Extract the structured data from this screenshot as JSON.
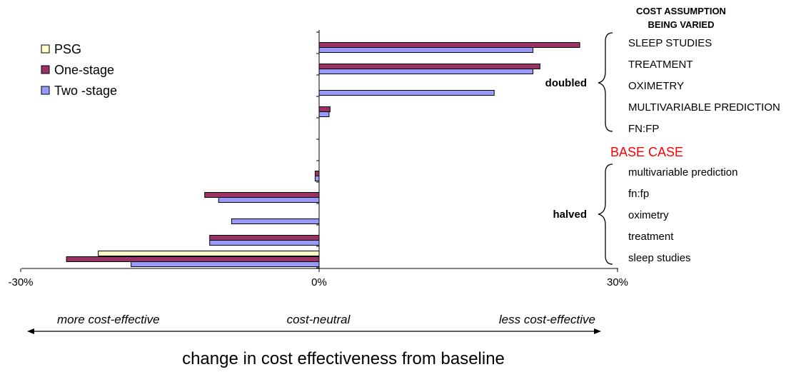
{
  "chart_data": {
    "type": "bar",
    "orientation": "horizontal",
    "xlim": [
      -30,
      30
    ],
    "x_ticks": [
      {
        "value": -30,
        "label": "-30%"
      },
      {
        "value": 0,
        "label": "0%"
      },
      {
        "value": 30,
        "label": "30%"
      }
    ],
    "xlabel": "change in cost effectiveness from baseline",
    "legend": {
      "placement": "top-left"
    },
    "series": [
      {
        "key": "psg",
        "name": "PSG",
        "color": "#FFFFCC"
      },
      {
        "key": "one",
        "name": "One-stage",
        "color": "#993366"
      },
      {
        "key": "two",
        "name": "Two -stage",
        "color": "#9999FF"
      }
    ],
    "category_header": [
      "COST ASSUMPTION",
      "BEING VARIED"
    ],
    "groups": [
      {
        "label": "doubled",
        "categories": [
          {
            "label": "SLEEP STUDIES",
            "values": {
              "psg": 0,
              "one": 26.2,
              "two": 21.5
            }
          },
          {
            "label": "TREATMENT",
            "values": {
              "psg": 0,
              "one": 22.2,
              "two": 21.5
            }
          },
          {
            "label": "OXIMETRY",
            "values": {
              "psg": 0,
              "one": 0,
              "two": 17.6
            }
          },
          {
            "label": "MULTIVARIABLE PREDICTION",
            "values": {
              "psg": 0,
              "one": 1.1,
              "two": 1.0
            }
          },
          {
            "label": "FN:FP",
            "values": {
              "psg": 0,
              "one": 0,
              "two": 0
            }
          }
        ]
      },
      {
        "label": "BASE CASE",
        "base": true,
        "color": "#FF0000"
      },
      {
        "label": "halved",
        "categories": [
          {
            "label": "multivariable prediction",
            "values": {
              "psg": 0,
              "one": -0.4,
              "two": -0.4
            }
          },
          {
            "label": "fn:fp",
            "values": {
              "psg": 0,
              "one": -11.5,
              "two": -10.1
            }
          },
          {
            "label": "oximetry",
            "values": {
              "psg": 0,
              "one": 0,
              "two": -8.8
            }
          },
          {
            "label": "treatment",
            "values": {
              "psg": 0,
              "one": -11.0,
              "two": -11.0
            }
          },
          {
            "label": "sleep studies",
            "values": {
              "psg": -22.2,
              "one": -25.4,
              "two": -18.9
            }
          }
        ]
      }
    ],
    "direction_labels": {
      "left": "more cost-effective",
      "center": "cost-neutral",
      "right": "less cost-effective"
    }
  }
}
